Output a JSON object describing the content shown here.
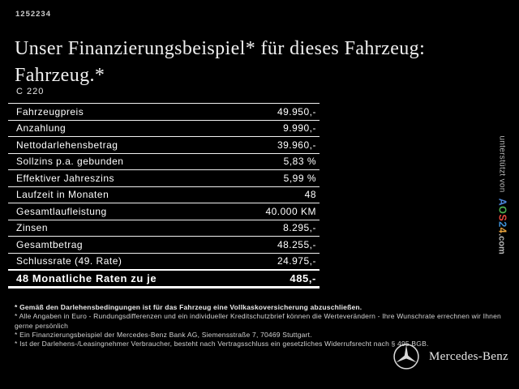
{
  "page": {
    "doc_number": "1252234",
    "title_line1": "Unser Finanzierungsbeispiel* für dieses Fahrzeug:",
    "title_line2": "Fahrzeug.*",
    "model": "C 220"
  },
  "table": {
    "rows": [
      {
        "label": "Fahrzeugpreis",
        "value": "49.950,-",
        "emphasis": false
      },
      {
        "label": "Anzahlung",
        "value": "9.990,-",
        "emphasis": false
      },
      {
        "label": "Nettodarlehensbetrag",
        "value": "39.960,-",
        "emphasis": false
      },
      {
        "label": "Sollzins p.a. gebunden",
        "value": "5,83 %",
        "emphasis": false
      },
      {
        "label": "Effektiver Jahreszins",
        "value": "5,99 %",
        "emphasis": false
      },
      {
        "label": "Laufzeit in Monaten",
        "value": "48",
        "emphasis": false
      },
      {
        "label": "Gesamtlaufleistung",
        "value": "40.000 KM",
        "emphasis": false
      },
      {
        "label": "Zinsen",
        "value": "8.295,-",
        "emphasis": false
      },
      {
        "label": "Gesamtbetrag",
        "value": "48.255,-",
        "emphasis": false
      },
      {
        "label": "Schlussrate (49. Rate)",
        "value": "24.975,-",
        "emphasis": false
      },
      {
        "label": "48 Monatliche Raten zu je",
        "value": "485,-",
        "emphasis": true
      }
    ]
  },
  "footnotes": [
    "* Gemäß den Darlehensbedingungen ist für das Fahrzeug eine Vollkaskoversicherung abzuschließen.",
    "* Alle Angaben in Euro - Rundungsdifferenzen und ein individueller Kreditschutzbrief können die Werteverändern - Ihre Wunschrate errechnen wir Ihnen gerne persönlich",
    "* Ein Finanzierungsbeispiel der Mercedes-Benz Bank AG, Siemensstraße 7, 70469 Stuttgart.",
    "* Ist der Darlehens-/Leasingnehmer Verbraucher, besteht nach Vertragsschluss ein gesetzliches Widerrufsrecht nach § 495 BGB."
  ],
  "sidebar": {
    "prefix": "unterstützt von",
    "logo": {
      "letters": [
        {
          "char": "A",
          "style": "color:#4a83d6"
        },
        {
          "char": "O",
          "style": "color:#4caf50"
        },
        {
          "char": "S",
          "style": "color:#e5483c"
        },
        {
          "char": "2",
          "style": "color:#3f8fd4"
        },
        {
          "char": "4",
          "style": "color:#e8a33d"
        }
      ],
      "suffix": ".com"
    }
  },
  "footer": {
    "brand": "Mercedes-Benz"
  },
  "colors": {
    "background": "#000000",
    "text": "#f2f2f2",
    "table_rule": "#f0f0f0",
    "logo_blue": "#4a83d6",
    "logo_green": "#4caf50",
    "logo_red": "#e5483c",
    "logo_yellow": "#e8a33d"
  }
}
